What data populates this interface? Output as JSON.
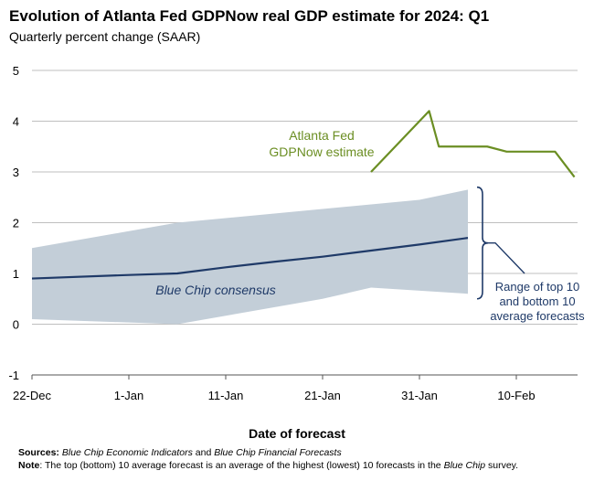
{
  "title": "Evolution of Atlanta Fed GDPNow real GDP estimate for 2024: Q1",
  "subtitle": "Quarterly percent change (SAAR)",
  "xlabel": "Date of forecast",
  "notes": {
    "sources_label": "Sources:",
    "sources_part1": "Blue Chip Economic Indicators",
    "sources_and": " and ",
    "sources_part2": "Blue Chip Financial Forecasts",
    "note_label": "Note",
    "note_text1": ": The top (bottom) 10 average forecast is an average of the highest (lowest) 10 forecasts in the ",
    "note_bluechip": "Blue Chip",
    "note_text2": " survey."
  },
  "colors": {
    "gdpnow": "#6b8e23",
    "consensus": "#1f3a68",
    "range": "#c3ced8",
    "axis": "#555555",
    "grid": "#bfbfbf"
  },
  "chart_data": {
    "type": "line",
    "title": "Evolution of Atlanta Fed GDPNow real GDP estimate for 2024: Q1",
    "subtitle": "Quarterly percent change (SAAR)",
    "xlabel": "Date of forecast",
    "ylabel": "",
    "ylim": [
      -1,
      5
    ],
    "yticks": [
      -1,
      0,
      1,
      2,
      3,
      4,
      5
    ],
    "xticks": [
      "22-Dec",
      "1-Jan",
      "11-Jan",
      "21-Jan",
      "31-Jan",
      "10-Feb"
    ],
    "grid": true,
    "series": [
      {
        "name": "Atlanta Fed GDPNow estimate",
        "color": "#6b8e23",
        "points": [
          [
            "2024-01-26",
            3.0
          ],
          [
            "2024-02-01",
            4.2
          ],
          [
            "2024-02-02",
            3.5
          ],
          [
            "2024-02-07",
            3.5
          ],
          [
            "2024-02-09",
            3.4
          ],
          [
            "2024-02-14",
            3.4
          ],
          [
            "2024-02-16",
            2.9
          ]
        ]
      },
      {
        "name": "Blue Chip consensus",
        "color": "#1f3a68",
        "points": [
          [
            "2023-12-22",
            0.9
          ],
          [
            "2024-01-01",
            0.97
          ],
          [
            "2024-01-06",
            1.0
          ],
          [
            "2024-01-11",
            1.12
          ],
          [
            "2024-01-16",
            1.23
          ],
          [
            "2024-01-21",
            1.33
          ],
          [
            "2024-01-26",
            1.45
          ],
          [
            "2024-01-31",
            1.57
          ],
          [
            "2024-02-05",
            1.7
          ]
        ]
      }
    ],
    "range_band": {
      "name": "Range of top 10 and bottom 10 average forecasts",
      "color": "#c3ced8",
      "upper": [
        [
          "2023-12-22",
          1.5
        ],
        [
          "2024-01-06",
          2.0
        ],
        [
          "2024-01-31",
          2.45
        ],
        [
          "2024-02-05",
          2.65
        ]
      ],
      "lower": [
        [
          "2023-12-22",
          0.1
        ],
        [
          "2024-01-06",
          0.0
        ],
        [
          "2024-01-21",
          0.5
        ],
        [
          "2024-01-26",
          0.72
        ],
        [
          "2024-02-05",
          0.6
        ]
      ]
    },
    "annotations": {
      "gdpnow_label": [
        "Atlanta Fed",
        "GDPNow estimate"
      ],
      "consensus_label": "Blue Chip consensus",
      "range_label": [
        "Range of top 10",
        "and bottom 10",
        "average forecasts"
      ]
    }
  }
}
